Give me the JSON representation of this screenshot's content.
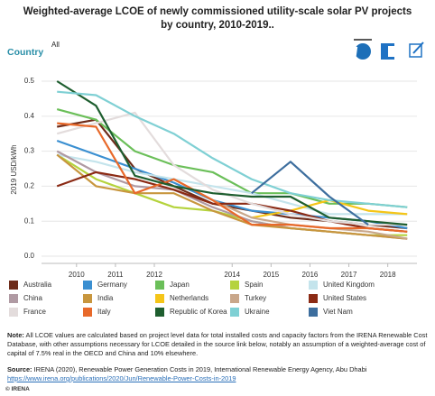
{
  "chart_data": {
    "type": "line",
    "title": "Weighted-average LCOE of newly commissioned utility-scale solar PV projects by country, 2010-2019..",
    "filter_label": "Country",
    "filter_value": "All",
    "ylabel": "2019 USD/kWh",
    "x": [
      2009.5,
      2010.5,
      2011.5,
      2012.5,
      2013.5,
      2014.5,
      2015.5,
      2016.5,
      2017.5,
      2018.5
    ],
    "xlim": [
      2009.1,
      2018.75
    ],
    "xticks": [
      2010,
      2011,
      2012,
      2014,
      2015,
      2016,
      2017,
      2018
    ],
    "ylim": [
      0,
      0.54
    ],
    "yticks": [
      {
        "value": 0,
        "label": "0.0"
      },
      0.1,
      0.2,
      0.3,
      0.4,
      0.5
    ],
    "grid": true,
    "series": [
      {
        "name": "Australia",
        "color": "#6e2c1a",
        "values": [
          0.37,
          0.39,
          0.25,
          0.2,
          0.15,
          0.13,
          0.11,
          0.1,
          0.09,
          0.08
        ]
      },
      {
        "name": "Germany",
        "color": "#3a8fd1",
        "values": [
          0.33,
          0.29,
          0.25,
          0.21,
          0.16,
          0.13,
          0.12,
          0.11,
          0.1,
          0.08
        ]
      },
      {
        "name": "Japan",
        "color": "#6bbf59",
        "values": [
          0.42,
          0.39,
          0.3,
          0.26,
          0.24,
          0.18,
          0.18,
          0.15,
          0.15,
          0.14
        ]
      },
      {
        "name": "Spain",
        "color": "#b5d33d",
        "values": [
          0.29,
          0.22,
          0.18,
          0.14,
          0.13,
          0.1,
          0.08,
          0.07,
          0.06,
          0.06
        ]
      },
      {
        "name": "United Kingdom",
        "color": "#c4e4ec",
        "values": [
          0.29,
          0.27,
          0.24,
          0.22,
          0.2,
          0.18,
          0.15,
          0.12,
          0.12,
          0.12
        ]
      },
      {
        "name": "China",
        "color": "#b09aa3",
        "values": [
          0.3,
          0.24,
          0.2,
          0.19,
          0.14,
          0.1,
          0.08,
          0.07,
          0.06,
          0.05
        ]
      },
      {
        "name": "India",
        "color": "#c8963e",
        "values": [
          0.29,
          0.2,
          0.18,
          0.18,
          0.13,
          0.09,
          0.08,
          0.07,
          0.06,
          0.05
        ]
      },
      {
        "name": "Netherlands",
        "color": "#f5c518",
        "values": [
          null,
          null,
          null,
          null,
          null,
          0.11,
          0.13,
          0.16,
          0.13,
          0.12
        ]
      },
      {
        "name": "Turkey",
        "color": "#c9a78a",
        "values": [
          null,
          null,
          null,
          null,
          0.16,
          0.11,
          0.09,
          0.08,
          0.07,
          0.05
        ]
      },
      {
        "name": "United States",
        "color": "#8b2a14",
        "values": [
          0.2,
          0.24,
          0.22,
          0.19,
          0.15,
          0.15,
          0.13,
          0.1,
          0.08,
          0.07
        ]
      },
      {
        "name": "France",
        "color": "#e3dcdc",
        "values": [
          0.35,
          0.38,
          0.41,
          0.26,
          0.19,
          0.15,
          0.12,
          0.1,
          0.09,
          0.09
        ]
      },
      {
        "name": "Italy",
        "color": "#e8692a",
        "values": [
          0.38,
          0.37,
          0.18,
          0.22,
          0.16,
          0.09,
          0.09,
          0.08,
          0.08,
          0.07
        ]
      },
      {
        "name": "Republic of Korea",
        "color": "#1e5e2f",
        "values": [
          0.5,
          0.43,
          0.23,
          0.2,
          0.18,
          0.17,
          0.17,
          0.11,
          0.1,
          0.09
        ]
      },
      {
        "name": "Ukraine",
        "color": "#7fd0d4",
        "values": [
          0.47,
          0.46,
          0.4,
          0.35,
          0.28,
          0.22,
          0.18,
          0.16,
          0.15,
          0.14
        ]
      },
      {
        "name": "Viet Nam",
        "color": "#3d6e9e",
        "values": [
          null,
          null,
          null,
          null,
          null,
          0.18,
          0.27,
          0.17,
          0.09,
          null
        ]
      }
    ],
    "note_label": "Note:",
    "note": "All LCOE values are calculated based on project level data for total installed costs and capacity factors from the IRENA Renewable Cost Database, with other assumptions necessary for LCOE detailed in the source link below, notably an assumption of a weighted-average cost of capital of 7.5% real in the OECD and China and 10% elsewhere.",
    "source_label": "Source:",
    "source": "IRENA (2020), Renewable Power Generation Costs in 2019, International Renewable Energy Agency, Abu Dhabi",
    "source_url": "https://www.irena.org/publications/2020/Jun/Renewable-Power-Costs-in-2019",
    "copyright": "© IRENA"
  }
}
